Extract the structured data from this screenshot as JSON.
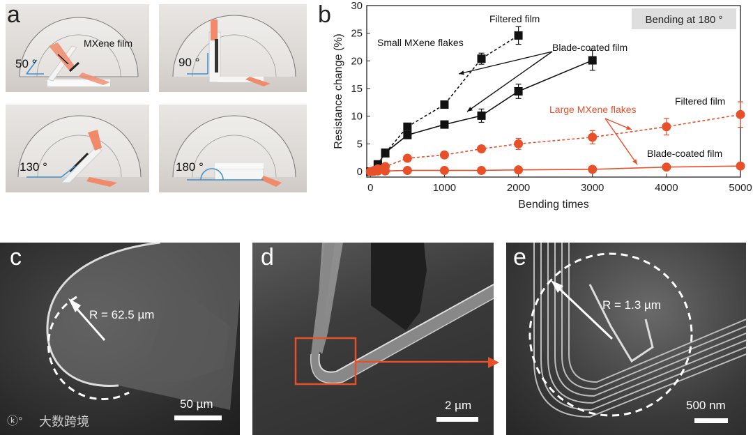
{
  "panel_a": {
    "label": "a",
    "photos": [
      {
        "angle": "50 °",
        "annotation": "MXene film"
      },
      {
        "angle": "90 °"
      },
      {
        "angle": "130 °"
      },
      {
        "angle": "180 °"
      }
    ]
  },
  "panel_b": {
    "label": "b"
  },
  "panel_c": {
    "label": "c",
    "radius_text": "R = 62.5 µm",
    "scale": "50 µm"
  },
  "panel_d": {
    "label": "d",
    "scale": "2 µm"
  },
  "panel_e": {
    "label": "e",
    "radius_text": "R = 1.3 µm",
    "scale": "500 nm"
  },
  "watermark": "大数跨境",
  "colors": {
    "black_series": "#111111",
    "red_series": "#e8502a",
    "legend_box": "#dedede"
  },
  "chart_data": {
    "type": "line",
    "xlabel": "Bending times",
    "ylabel": "Resistance change (%)",
    "xlim": [
      -50,
      5000
    ],
    "ylim": [
      -1,
      30
    ],
    "xticks": [
      0,
      1000,
      2000,
      3000,
      4000,
      5000
    ],
    "yticks": [
      0,
      5,
      10,
      15,
      20,
      25,
      30
    ],
    "legend_box": "Bending at 180 °",
    "series": [
      {
        "name": "Filtered film",
        "group": "Small MXene flakes",
        "color": "#111111",
        "marker": "square",
        "dash": true,
        "x": [
          0,
          100,
          200,
          500,
          1000,
          1500,
          2000
        ],
        "y": [
          0,
          1.2,
          3.3,
          8.1,
          12.1,
          20.4,
          24.6
        ],
        "err": [
          0,
          0.3,
          0.4,
          0.6,
          0.5,
          1.0,
          1.6
        ]
      },
      {
        "name": "Blade-coated film",
        "group": "Small MXene flakes",
        "color": "#111111",
        "marker": "square",
        "dash": false,
        "x": [
          0,
          100,
          200,
          500,
          1000,
          1500,
          2000,
          3000
        ],
        "y": [
          0,
          1.3,
          3.4,
          6.6,
          8.5,
          10.1,
          14.5,
          20.1
        ],
        "err": [
          0,
          0.3,
          0.4,
          0.6,
          0.5,
          1.2,
          1.3,
          1.8
        ]
      },
      {
        "name": "Filtered film",
        "group": "Large MXene flakes",
        "color": "#e8502a",
        "marker": "circle",
        "dash": true,
        "x": [
          0,
          50,
          100,
          200,
          500,
          1000,
          1500,
          2000,
          3000,
          4000,
          5000
        ],
        "y": [
          0,
          0.2,
          0.5,
          0.9,
          2.4,
          3.0,
          4.1,
          5.0,
          6.2,
          8.1,
          10.3
        ],
        "err": [
          0,
          0.1,
          0.2,
          0.3,
          0.4,
          0.4,
          0.5,
          1.0,
          1.2,
          1.5,
          2.3
        ]
      },
      {
        "name": "Blade-coated film",
        "group": "Large MXene flakes",
        "color": "#e8502a",
        "marker": "circle",
        "dash": false,
        "x": [
          0,
          50,
          100,
          200,
          500,
          1000,
          1500,
          2000,
          3000,
          4000,
          5000
        ],
        "y": [
          0,
          0.05,
          0.1,
          0.1,
          0.2,
          0.2,
          0.2,
          0.3,
          0.4,
          0.8,
          1.0
        ],
        "err": [
          0,
          0,
          0,
          0,
          0,
          0,
          0,
          0,
          0,
          0.2,
          0.2
        ]
      }
    ],
    "annotations": [
      {
        "text": "Filtered film",
        "color": "#111111"
      },
      {
        "text": "Small MXene flakes",
        "color": "#111111"
      },
      {
        "text": "Blade-coated film",
        "color": "#111111"
      },
      {
        "text": "Large MXene flakes",
        "color": "#e8502a"
      },
      {
        "text": "Filtered film",
        "color": "#111111"
      },
      {
        "text": "Blade-coated film",
        "color": "#111111"
      }
    ]
  }
}
